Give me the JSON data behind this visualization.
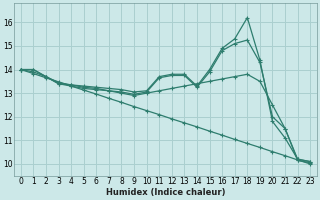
{
  "xlabel": "Humidex (Indice chaleur)",
  "ylabel": "",
  "background_color": "#cce8e8",
  "grid_color": "#aacfcf",
  "line_color": "#2e7d6e",
  "xlim": [
    -0.5,
    23.5
  ],
  "ylim": [
    9.5,
    16.8
  ],
  "xticks": [
    0,
    1,
    2,
    3,
    4,
    5,
    6,
    7,
    8,
    9,
    10,
    11,
    12,
    13,
    14,
    15,
    16,
    17,
    18,
    19,
    20,
    21,
    22,
    23
  ],
  "yticks": [
    10,
    11,
    12,
    13,
    14,
    15,
    16
  ],
  "series": [
    {
      "x": [
        0,
        1,
        2,
        3,
        4,
        5,
        6,
        7,
        8,
        9,
        10,
        11,
        12,
        13,
        14,
        15,
        16,
        17,
        18,
        19,
        20,
        21,
        22,
        23
      ],
      "y": [
        14.0,
        14.0,
        13.7,
        13.4,
        13.35,
        13.3,
        13.25,
        13.2,
        13.15,
        13.05,
        13.1,
        13.7,
        13.8,
        13.8,
        13.3,
        14.0,
        14.9,
        15.3,
        16.2,
        14.4,
        11.8,
        11.1,
        10.2,
        10.1
      ]
    },
    {
      "x": [
        0,
        1,
        2,
        3,
        4,
        5,
        6,
        7,
        8,
        9,
        10,
        11,
        12,
        13,
        14,
        15,
        16,
        17,
        18,
        19,
        20,
        21,
        22,
        23
      ],
      "y": [
        14.0,
        14.0,
        13.7,
        13.45,
        13.35,
        13.25,
        13.2,
        13.1,
        13.05,
        12.95,
        13.05,
        13.65,
        13.75,
        13.75,
        13.25,
        13.9,
        14.8,
        15.1,
        15.25,
        14.3,
        12.0,
        11.5,
        10.15,
        10.05
      ]
    },
    {
      "x": [
        0,
        1,
        2,
        3,
        4,
        5,
        6,
        7,
        8,
        9,
        10,
        11,
        12,
        13,
        14,
        15,
        16,
        17,
        18,
        19,
        20,
        21,
        22,
        23
      ],
      "y": [
        14.0,
        13.9,
        13.7,
        13.4,
        13.3,
        13.2,
        13.15,
        13.1,
        13.0,
        12.9,
        13.0,
        13.1,
        13.2,
        13.3,
        13.4,
        13.5,
        13.6,
        13.7,
        13.8,
        13.5,
        12.5,
        11.5,
        10.2,
        10.1
      ]
    },
    {
      "x": [
        0,
        1,
        2,
        3,
        4,
        5,
        6,
        7,
        8,
        9,
        10,
        11,
        12,
        13,
        14,
        15,
        16,
        17,
        18,
        19,
        20,
        21,
        22,
        23
      ],
      "y": [
        14.0,
        13.83,
        13.65,
        13.48,
        13.3,
        13.13,
        12.96,
        12.78,
        12.61,
        12.43,
        12.26,
        12.09,
        11.91,
        11.74,
        11.57,
        11.39,
        11.22,
        11.04,
        10.87,
        10.7,
        10.52,
        10.35,
        10.17,
        10.0
      ]
    }
  ]
}
